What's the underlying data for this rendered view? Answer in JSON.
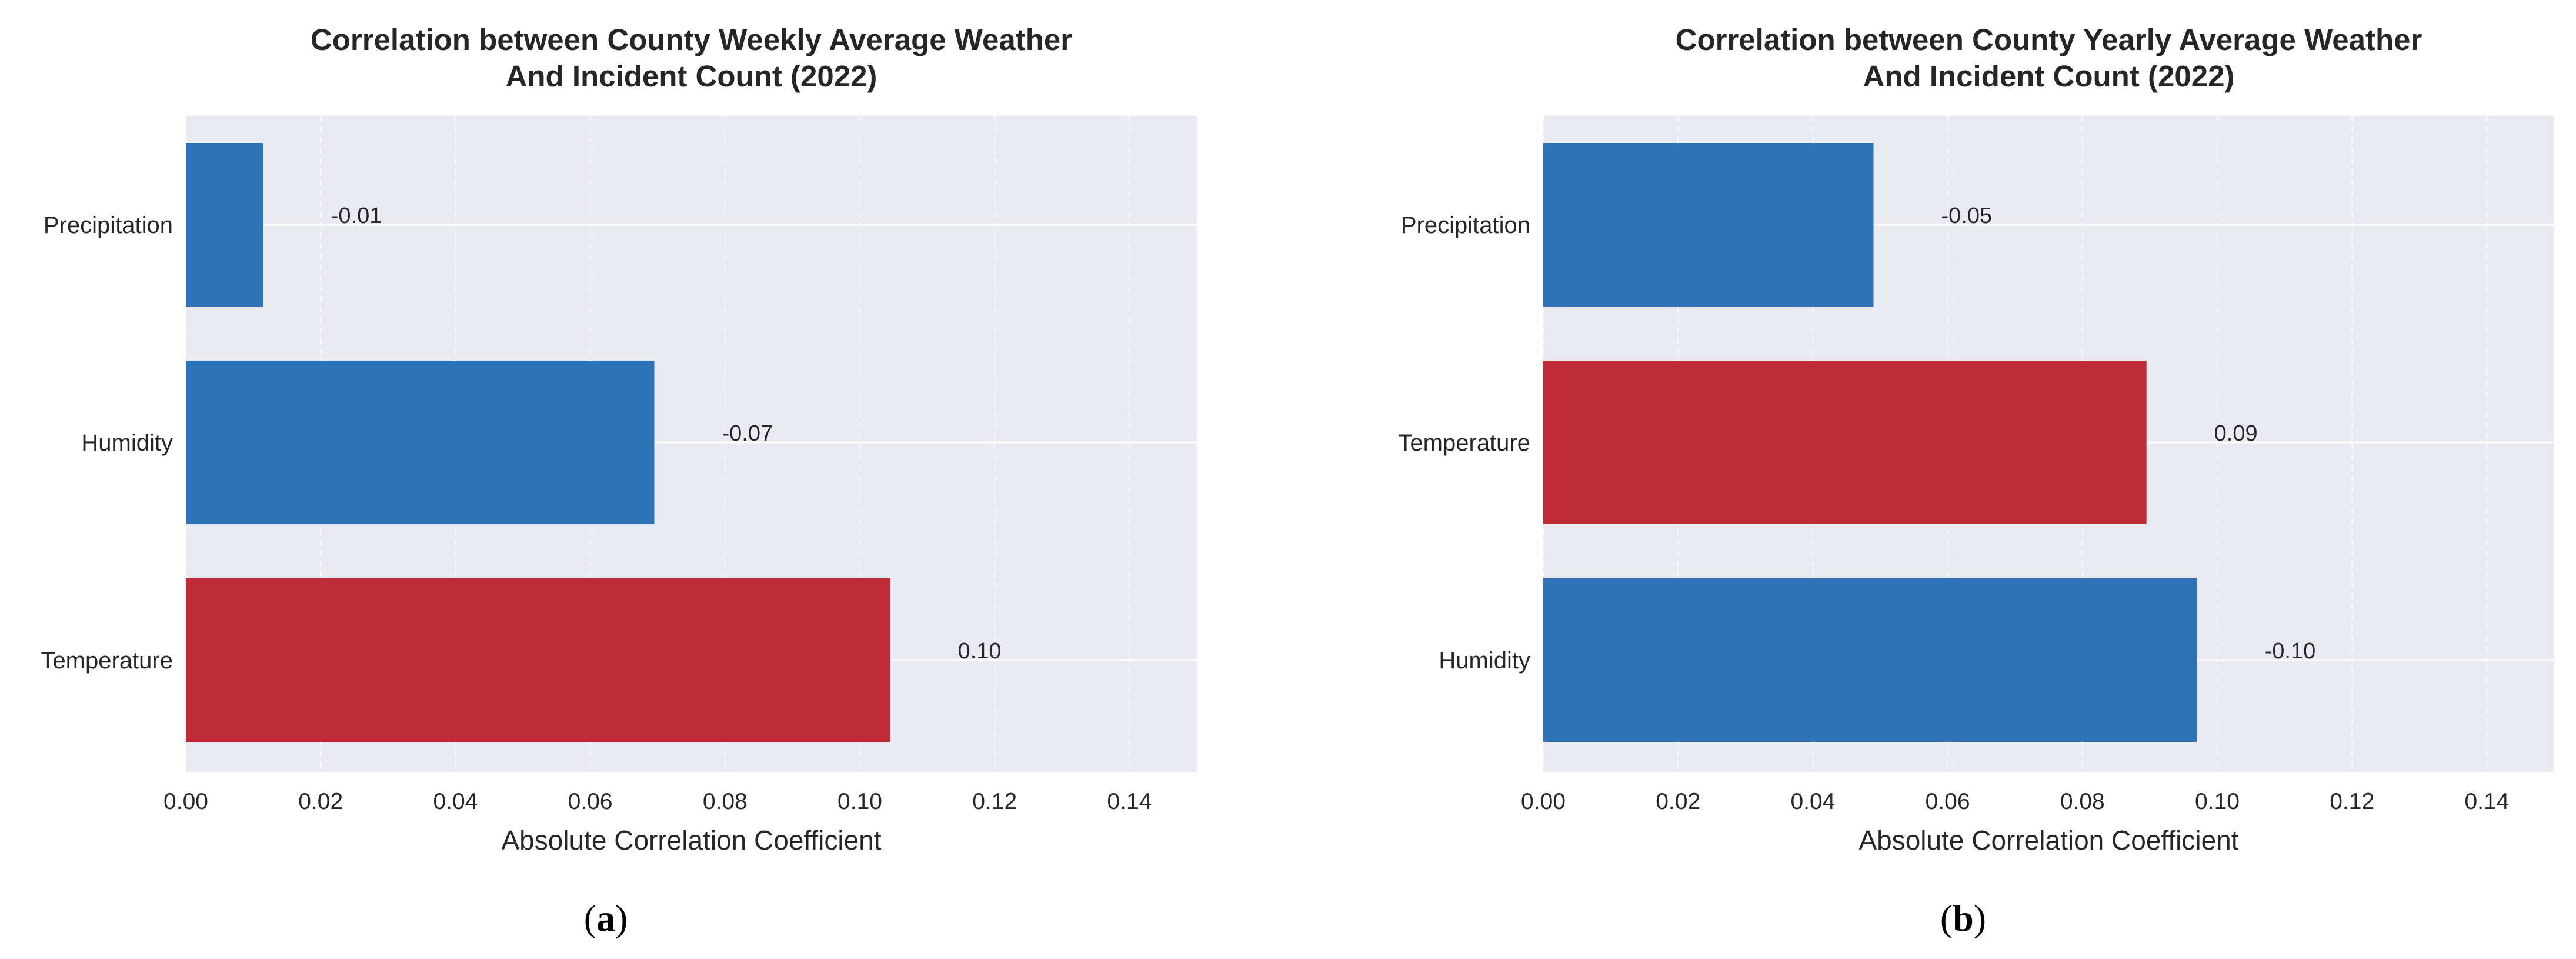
{
  "chart_data": [
    {
      "type": "bar",
      "orientation": "horizontal",
      "title": "Correlation between County Weekly Average Weather\nAnd Incident Count (2022)",
      "xlabel": "Absolute Correlation Coefficient",
      "ylabel": "",
      "xlim": [
        0,
        0.15
      ],
      "xticks": [
        "0.00",
        "0.02",
        "0.04",
        "0.06",
        "0.08",
        "0.10",
        "0.12",
        "0.14"
      ],
      "grid": true,
      "categories": [
        "Precipitation",
        "Humidity",
        "Temperature"
      ],
      "values": [
        0.0115,
        0.0695,
        0.1045
      ],
      "data_labels": [
        "-0.01",
        "-0.07",
        "0.10"
      ],
      "colors": [
        "#2e73b5",
        "#2e73b5",
        "#be2d37"
      ],
      "caption": "a"
    },
    {
      "type": "bar",
      "orientation": "horizontal",
      "title": "Correlation between County Yearly Average Weather\nAnd Incident Count (2022)",
      "xlabel": "Absolute Correlation Coefficient",
      "ylabel": "",
      "xlim": [
        0,
        0.15
      ],
      "xticks": [
        "0.00",
        "0.02",
        "0.04",
        "0.06",
        "0.08",
        "0.10",
        "0.12",
        "0.14"
      ],
      "grid": true,
      "categories": [
        "Precipitation",
        "Temperature",
        "Humidity"
      ],
      "values": [
        0.049,
        0.0895,
        0.097
      ],
      "data_labels": [
        "-0.05",
        "0.09",
        "-0.10"
      ],
      "colors": [
        "#2e73b5",
        "#be2d37",
        "#2e73b5"
      ],
      "caption": "b"
    }
  ],
  "style": {
    "plot_background": "#eaeaf2",
    "grid_color": "#ffffff",
    "text_color": "#262626"
  }
}
